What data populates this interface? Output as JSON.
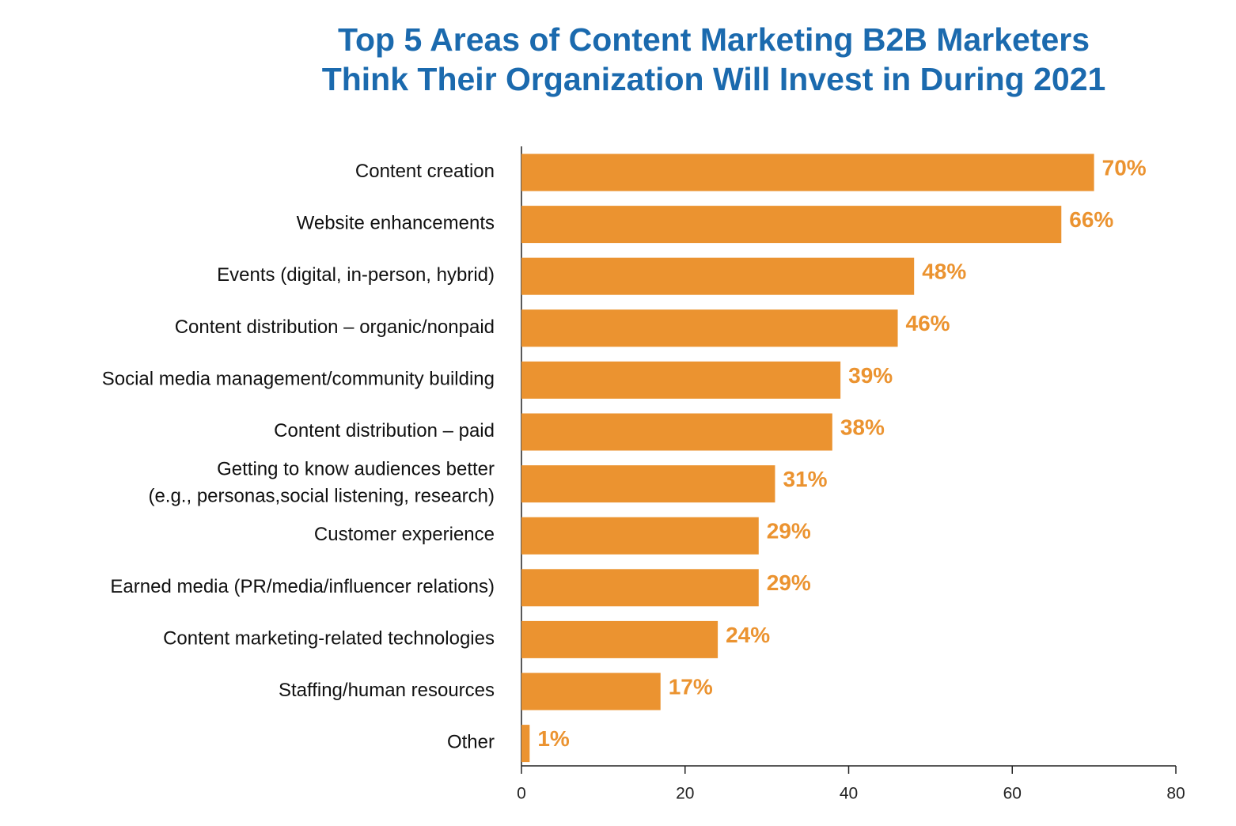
{
  "chart_data": {
    "type": "barh",
    "title": "Top 5 Areas of Content Marketing B2B Marketers\nThink Their Organization Will Invest in During 2021",
    "categories": [
      "Content creation",
      "Website enhancements",
      "Events (digital, in-person, hybrid)",
      "Content distribution – organic/nonpaid",
      "Social media management/community building",
      "Content distribution – paid",
      "Getting to know audiences better\n(e.g., personas,social listening, research)",
      "Customer experience",
      "Earned media (PR/media/influencer relations)",
      "Content marketing-related technologies",
      "Staffing/human resources",
      "Other"
    ],
    "values": [
      70,
      66,
      48,
      46,
      39,
      38,
      31,
      29,
      29,
      24,
      17,
      1
    ],
    "value_labels": [
      "70%",
      "66%",
      "48%",
      "46%",
      "39%",
      "38%",
      "31%",
      "29%",
      "29%",
      "24%",
      "17%",
      "1%"
    ],
    "color": "#eb9330",
    "xlim": [
      0,
      80
    ],
    "xticks": [
      0,
      20,
      40,
      60,
      80
    ],
    "grid": false
  }
}
